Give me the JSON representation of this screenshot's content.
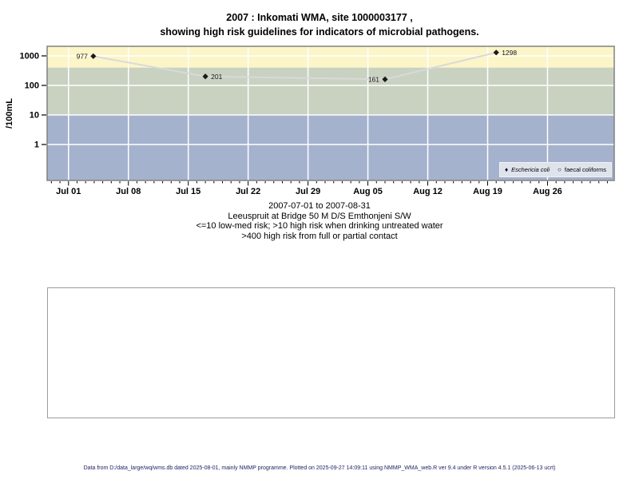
{
  "header": {
    "title_line1": "2007 : Inkomati WMA, site 1000003177 ,",
    "title_line2": "showing high risk guidelines for indicators of microbial pathogens."
  },
  "caption": {
    "lines": [
      "2007-07-01 to 2007-08-31",
      "Leeuspruit at Bridge 50 M D/S Emthonjeni S/W",
      "<=10 low-med risk; >10 high risk when drinking untreated water",
      ">400 high risk from full or partial contact"
    ]
  },
  "footer": {
    "text": "Data from D:/data_large/wq/wms.db dated 2025-08-01, mainly NMMP programme. Plotted on 2025-09-27 14:09:11 using NMMP_WMA_web.R ver 9.4 under R version 4.5.1 (2025-06-13 ucrt)",
    "color": "#222266"
  },
  "chart_data": {
    "type": "line",
    "ylabel": "/100mL",
    "y_scale": "log10",
    "y_ticks": [
      1,
      10,
      100,
      1000
    ],
    "y_domain_log10": [
      -1.216,
      3.324
    ],
    "x_ticks": [
      {
        "label": "Jul 01",
        "day": 0
      },
      {
        "label": "Jul 08",
        "day": 7
      },
      {
        "label": "Jul 15",
        "day": 14
      },
      {
        "label": "Jul 22",
        "day": 21
      },
      {
        "label": "Jul 29",
        "day": 28
      },
      {
        "label": "Aug 05",
        "day": 35
      },
      {
        "label": "Aug 12",
        "day": 42
      },
      {
        "label": "Aug 19",
        "day": 49
      },
      {
        "label": "Aug 26",
        "day": 56
      }
    ],
    "x_domain_days": [
      -2.5,
      63.8
    ],
    "grid_color": "#ffffff",
    "panel_border_color": "#808080",
    "bands": [
      {
        "name": "high-risk-full-partial-contact",
        "from": 400,
        "to": 2109,
        "color": "#fbf5c8"
      },
      {
        "name": "high-risk-drinking-untreated",
        "from": 10,
        "to": 400,
        "color": "#c9d2c1"
      },
      {
        "name": "low-med-risk",
        "from": 0.061,
        "to": 10,
        "color": "#a5b2cd"
      }
    ],
    "series": [
      {
        "name": "Eschericia coli",
        "marker": "filled-diamond",
        "line_color": "#d9d9d9",
        "marker_color": "#1a1a1a",
        "points": [
          {
            "day": 2.9,
            "value": 977,
            "label": "977",
            "label_side": "left"
          },
          {
            "day": 16,
            "value": 201,
            "label": "201",
            "label_side": "right"
          },
          {
            "day": 37,
            "value": 161,
            "label": "161",
            "label_side": "left"
          },
          {
            "day": 50,
            "value": 1298,
            "label": "1298",
            "label_side": "right"
          }
        ]
      },
      {
        "name": "faecal coliforms",
        "marker": "open-circle",
        "points": []
      }
    ],
    "legend": {
      "position": "bottom-right",
      "background": "#dfe3ec",
      "entries": [
        {
          "symbol": "filled-diamond",
          "glyph": "♦",
          "label": "Eschericia coli",
          "italic": true
        },
        {
          "symbol": "open-circle",
          "glyph": "○",
          "label": "faecal coliforms",
          "italic": false
        }
      ]
    }
  }
}
